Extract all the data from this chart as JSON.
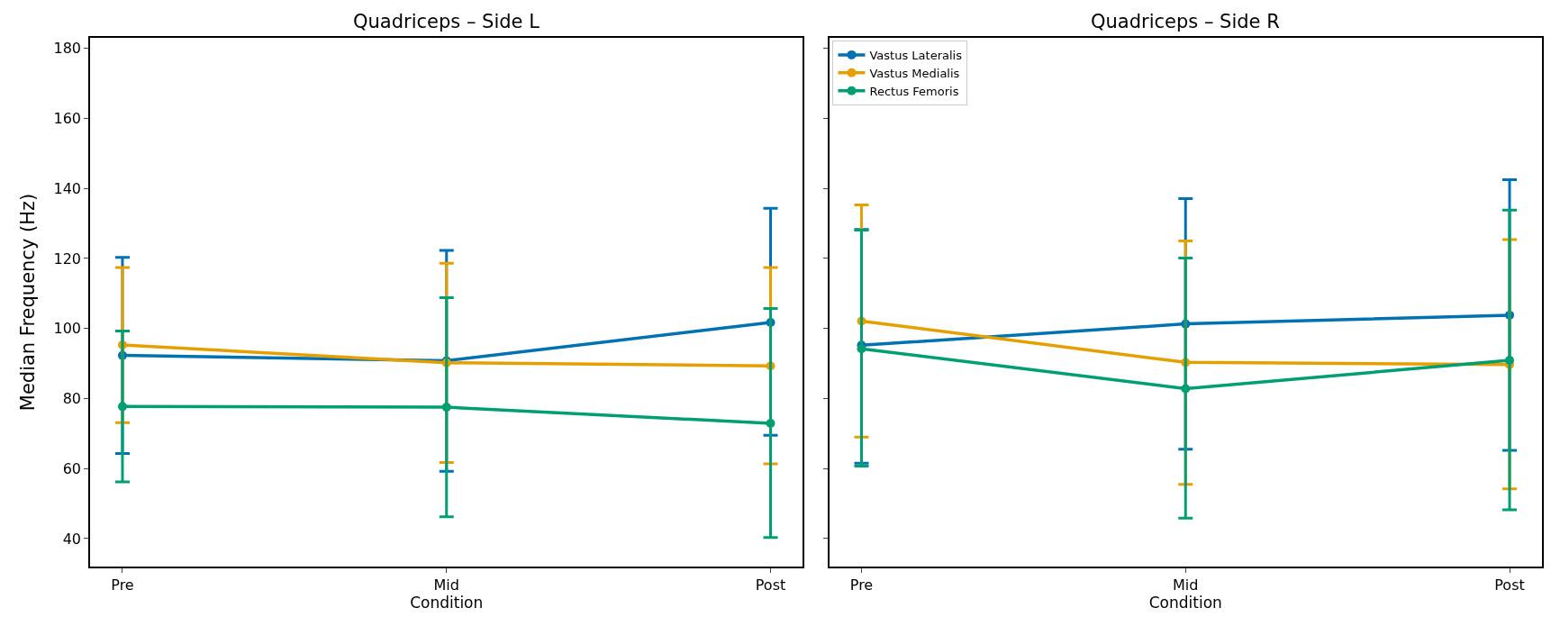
{
  "chart_data": [
    {
      "type": "line",
      "title": "Quadriceps – Side L",
      "xlabel": "Condition",
      "ylabel": "Median Frequency (Hz)",
      "categories": [
        "Pre",
        "Mid",
        "Post"
      ],
      "ylim": [
        32,
        183
      ],
      "yticks": [
        40,
        60,
        80,
        100,
        120,
        140,
        160,
        180
      ],
      "marker": "circle",
      "line_style": "solid",
      "series": [
        {
          "color": "#0072b2",
          "values": [
            92.3,
            90.8,
            101.7
          ],
          "errors": [
            [
              64.3,
              120.3
            ],
            [
              59.2,
              122.3
            ],
            [
              69.5,
              134.3
            ]
          ]
        },
        {
          "color": "#e69f00",
          "values": [
            95.3,
            90.2,
            89.3
          ],
          "errors": [
            [
              73.1,
              117.4
            ],
            [
              61.7,
              118.6
            ],
            [
              61.3,
              117.4
            ]
          ]
        },
        {
          "color": "#009e73",
          "values": [
            77.7,
            77.5,
            72.9
          ],
          "errors": [
            [
              56.2,
              99.3
            ],
            [
              46.2,
              108.8
            ],
            [
              40.3,
              105.7
            ]
          ]
        }
      ]
    },
    {
      "type": "line",
      "title": "Quadriceps – Side R",
      "xlabel": "Condition",
      "categories": [
        "Pre",
        "Mid",
        "Post"
      ],
      "ylim": [
        32,
        183
      ],
      "yticks": [
        40,
        60,
        80,
        100,
        120,
        140,
        160,
        180
      ],
      "tick_labels": "x",
      "marker": "circle",
      "line_style": "solid",
      "legend": "top left",
      "series": [
        {
          "name": "Vastus Lateralis",
          "color": "#0072b2",
          "values": [
            95.2,
            101.3,
            103.8
          ],
          "errors": [
            [
              61.5,
              128.3
            ],
            [
              65.5,
              137.1
            ],
            [
              65.2,
              142.5
            ]
          ]
        },
        {
          "name": "Vastus Medialis",
          "color": "#e69f00",
          "values": [
            102.1,
            90.3,
            89.7
          ],
          "errors": [
            [
              69.0,
              135.3
            ],
            [
              55.5,
              125.0
            ],
            [
              54.2,
              125.4
            ]
          ]
        },
        {
          "name": "Rectus Femoris",
          "color": "#009e73",
          "values": [
            94.2,
            82.8,
            90.9
          ],
          "errors": [
            [
              60.7,
              128.1
            ],
            [
              45.8,
              120.1
            ],
            [
              48.2,
              133.8
            ]
          ]
        }
      ]
    }
  ]
}
